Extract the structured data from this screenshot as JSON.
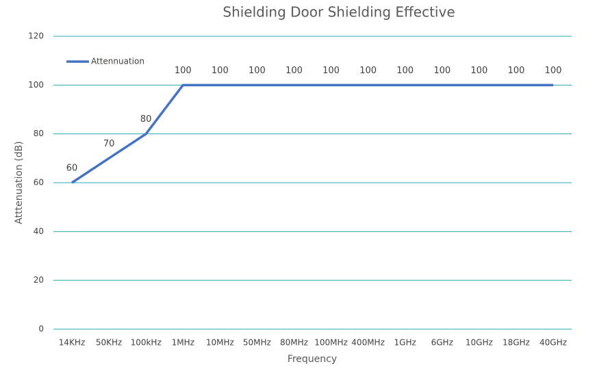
{
  "chart_data": {
    "type": "line",
    "title": "Shielding Door Shielding Effective",
    "x_label": "Frequency",
    "y_label": "Atttenuation (dB)",
    "categories": [
      "14KHz",
      "50KHz",
      "100kHz",
      "1MHz",
      "10MHz",
      "50MHz",
      "80MHz",
      "100MHz",
      "400MHz",
      "1GHz",
      "6GHz",
      "10GHz",
      "18GHz",
      "40GHz"
    ],
    "series": [
      {
        "name": "Attennuation",
        "color": "#4472c4",
        "values": [
          60,
          70,
          80,
          100,
          100,
          100,
          100,
          100,
          100,
          100,
          100,
          100,
          100,
          100
        ]
      }
    ],
    "ylim": [
      0,
      120
    ],
    "yticks": [
      0,
      20,
      40,
      60,
      80,
      100,
      120
    ],
    "grid": true,
    "legend": "upper left",
    "data_labels": true
  }
}
